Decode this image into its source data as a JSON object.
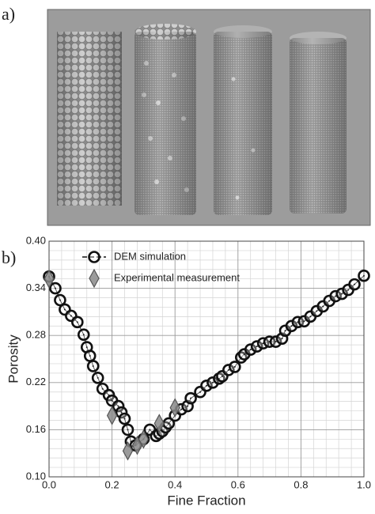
{
  "figure_labels": [
    "a)",
    "b)"
  ],
  "chart_data": {
    "type": "scatter",
    "xlabel": "Fine Fraction",
    "ylabel": "Porosity",
    "xlim": [
      0,
      1
    ],
    "ylim": [
      0.1,
      0.4
    ],
    "xticks": [
      {
        "value": 0,
        "label": "0.0"
      },
      0.2,
      0.4,
      0.6,
      0.8,
      {
        "value": 1,
        "label": "1.0"
      }
    ],
    "yticks": [
      {
        "value": 0.1,
        "label": "0.10"
      },
      0.16,
      0.22,
      0.28,
      0.34,
      {
        "value": 0.4,
        "label": "0.40"
      }
    ],
    "grid": true,
    "minor_grid": true,
    "legend": "upper left",
    "series": [
      {
        "name": "DEM simulation",
        "marker": "circle",
        "line": true,
        "color": "#111111",
        "x": [
          0.0,
          0.02,
          0.035,
          0.05,
          0.07,
          0.09,
          0.11,
          0.12,
          0.13,
          0.14,
          0.155,
          0.17,
          0.19,
          0.2,
          0.22,
          0.23,
          0.24,
          0.25,
          0.26,
          0.275,
          0.3,
          0.32,
          0.34,
          0.35,
          0.36,
          0.37,
          0.38,
          0.4,
          0.42,
          0.44,
          0.45,
          0.48,
          0.5,
          0.52,
          0.54,
          0.55,
          0.57,
          0.59,
          0.61,
          0.62,
          0.64,
          0.66,
          0.68,
          0.7,
          0.72,
          0.74,
          0.75,
          0.77,
          0.79,
          0.81,
          0.83,
          0.85,
          0.87,
          0.89,
          0.91,
          0.93,
          0.95,
          0.97,
          1.0
        ],
        "values": [
          0.355,
          0.34,
          0.325,
          0.313,
          0.305,
          0.297,
          0.281,
          0.265,
          0.254,
          0.241,
          0.226,
          0.212,
          0.204,
          0.197,
          0.19,
          0.182,
          0.174,
          0.16,
          0.145,
          0.14,
          0.148,
          0.16,
          0.152,
          0.155,
          0.158,
          0.163,
          0.168,
          0.178,
          0.186,
          0.19,
          0.2,
          0.208,
          0.216,
          0.22,
          0.225,
          0.228,
          0.236,
          0.24,
          0.252,
          0.256,
          0.262,
          0.266,
          0.27,
          0.272,
          0.272,
          0.276,
          0.286,
          0.292,
          0.297,
          0.298,
          0.304,
          0.311,
          0.317,
          0.324,
          0.33,
          0.333,
          0.338,
          0.345,
          0.356
        ]
      },
      {
        "name": "Experimental measurement",
        "marker": "diamond",
        "line": false,
        "color": "#8a8a8a",
        "x": [
          0.0,
          0.2,
          0.25,
          0.28,
          0.3,
          0.35,
          0.4
        ],
        "values": [
          0.352,
          0.178,
          0.133,
          0.14,
          0.148,
          0.168,
          0.188
        ]
      }
    ]
  }
}
